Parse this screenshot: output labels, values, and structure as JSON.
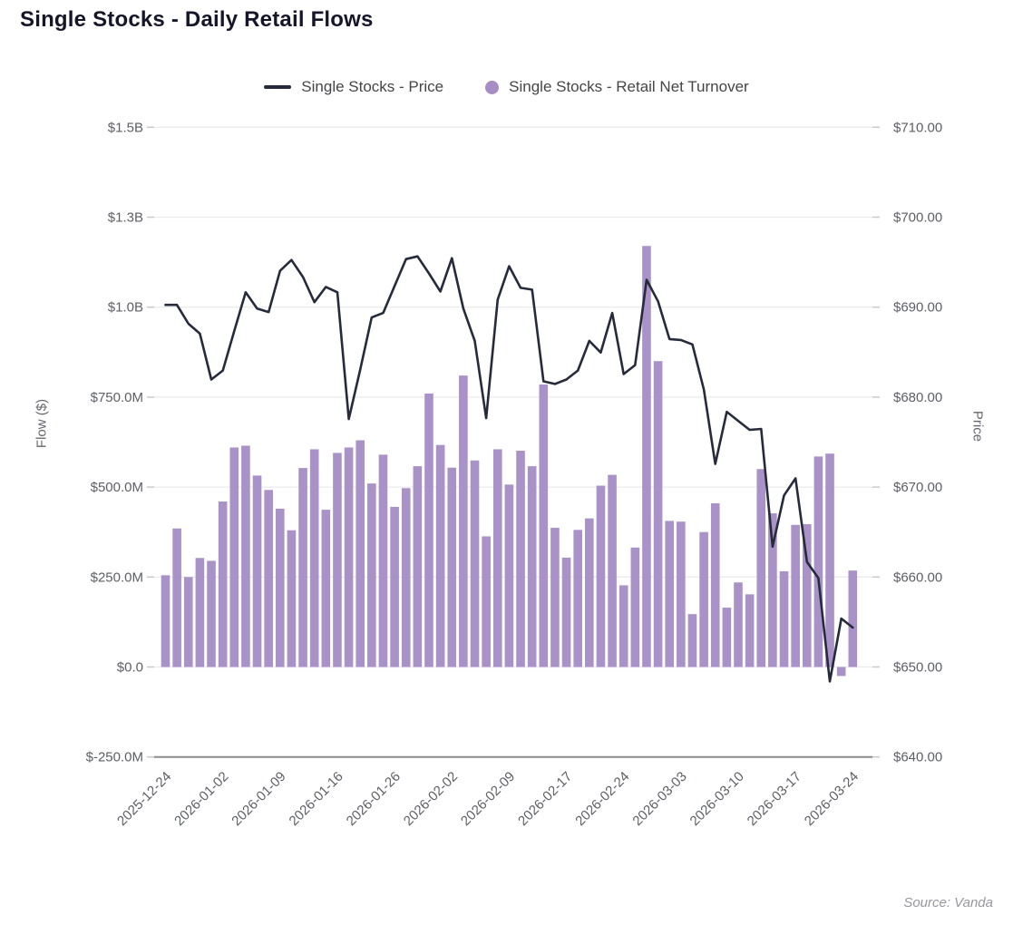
{
  "title": "Single Stocks - Daily Retail Flows",
  "legend": {
    "items": [
      {
        "label": "Single Stocks - Price",
        "marker": "line-marker",
        "color": "#262b3b"
      },
      {
        "label": "Single Stocks - Retail Net Turnover",
        "marker": "dot-marker",
        "color": "#a78dc6"
      }
    ]
  },
  "y_left": {
    "title": "Flow ($)",
    "tick_labels": [
      "$1.5B",
      "$1.3B",
      "$1.0B",
      "$750.0M",
      "$500.0M",
      "$250.0M",
      "$0.0",
      "$-250.0M"
    ],
    "tick_values_musd": [
      1500,
      1250,
      1000,
      750,
      500,
      250,
      0,
      -250
    ]
  },
  "y_right": {
    "title": "Price",
    "tick_labels": [
      "$710.00",
      "$700.00",
      "$690.00",
      "$680.00",
      "$670.00",
      "$660.00",
      "$650.00",
      "$640.00"
    ],
    "tick_values": [
      710,
      700,
      690,
      680,
      670,
      660,
      650,
      640
    ]
  },
  "source": {
    "text": "Source: Vanda"
  },
  "colors": {
    "bar": "#a289c2",
    "line": "#262b3b",
    "grid": "#ebebee",
    "bottom_axis": "#8b8b90",
    "tick_dash": "#c9c9ce",
    "tick_text": "#5c5f66",
    "title_text": "#16162a",
    "source_text": "#97979f"
  },
  "chart_data": {
    "type": "combo",
    "x_tick_labels": [
      "2025-12-24",
      "2026-01-02",
      "2026-01-09",
      "2026-01-16",
      "2026-01-26",
      "2026-02-02",
      "2026-02-09",
      "2026-02-17",
      "2026-02-24",
      "2026-03-03",
      "2026-03-10",
      "2026-03-17",
      "2026-03-24"
    ],
    "x_tick_every": 5,
    "n_points": 61,
    "ylim_left_musd": [
      -250,
      1500
    ],
    "ylim_right_usd": [
      640,
      710
    ],
    "grid": "horizontal",
    "legend_position": "top-center",
    "series": [
      {
        "name": "Single Stocks - Retail Net Turnover",
        "type": "bar",
        "axis": "left",
        "unit": "$M",
        "values": [
          255,
          385,
          250,
          303,
          295,
          460,
          610,
          615,
          532,
          492,
          440,
          380,
          553,
          605,
          437,
          595,
          610,
          630,
          510,
          590,
          445,
          497,
          558,
          760,
          617,
          554,
          810,
          574,
          363,
          605,
          507,
          601,
          558,
          785,
          387,
          304,
          381,
          413,
          504,
          534,
          227,
          332,
          1170,
          850,
          406,
          404,
          147,
          375,
          455,
          165,
          235,
          202,
          550,
          427,
          266,
          395,
          397,
          585,
          593,
          -25,
          268
        ]
      },
      {
        "name": "Single Stocks - Price",
        "type": "line",
        "axis": "right",
        "unit": "$",
        "values": [
          690.2,
          690.2,
          688.1,
          687.0,
          681.9,
          682.9,
          687.3,
          691.6,
          689.8,
          689.4,
          694.0,
          695.2,
          693.3,
          690.5,
          692.2,
          691.6,
          677.5,
          683.0,
          688.8,
          689.3,
          692.3,
          695.3,
          695.6,
          693.7,
          691.7,
          695.4,
          689.8,
          686.2,
          677.6,
          690.8,
          694.5,
          692.1,
          691.9,
          681.7,
          681.4,
          681.9,
          682.9,
          686.2,
          684.9,
          689.3,
          682.5,
          683.5,
          693.0,
          690.6,
          686.4,
          686.3,
          685.8,
          680.8,
          672.5,
          678.3,
          677.3,
          676.3,
          676.4,
          663.3,
          669.0,
          670.9,
          661.6,
          659.8,
          648.3,
          655.3,
          654.3
        ]
      }
    ]
  }
}
